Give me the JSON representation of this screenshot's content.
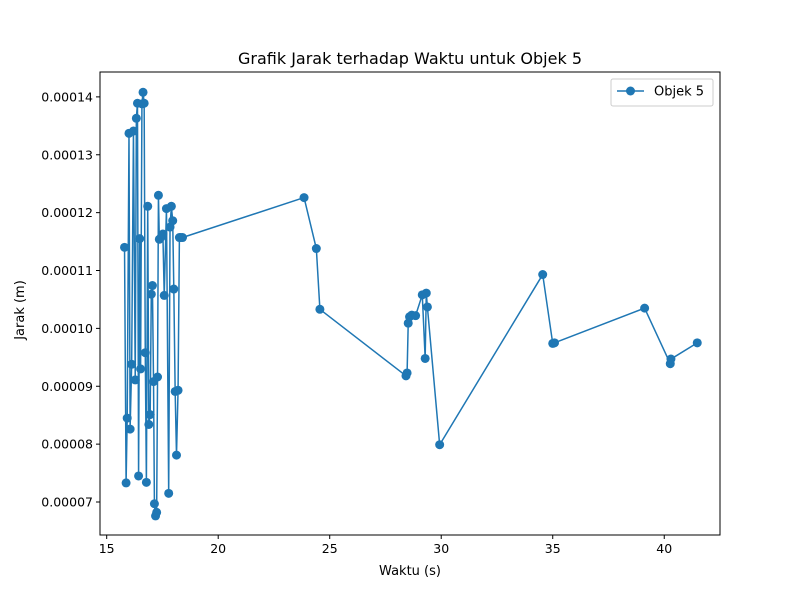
{
  "chart_data": {
    "type": "line",
    "title": "Grafik Jarak terhadap Waktu untuk Objek 5",
    "xlabel": "Waktu (s)",
    "ylabel": "Jarak (m)",
    "xlim": [
      14.7,
      42.5
    ],
    "ylim": [
      6.43e-05,
      0.0001443
    ],
    "xticks": [
      15,
      20,
      25,
      30,
      35,
      40
    ],
    "xtick_labels": [
      "15",
      "20",
      "25",
      "30",
      "35",
      "40"
    ],
    "yticks": [
      7e-05,
      8e-05,
      9e-05,
      0.0001,
      0.00011,
      0.00012,
      0.00013,
      0.00014
    ],
    "ytick_labels": [
      "0.00007",
      "0.00008",
      "0.00009",
      "0.00010",
      "0.00011",
      "0.00012",
      "0.00013",
      "0.00014"
    ],
    "grid": false,
    "legend_position": "top-right",
    "color": "#1f77b4",
    "series": [
      {
        "name": "Objek 5",
        "x": [
          15.8,
          15.87,
          15.92,
          16.0,
          16.05,
          16.12,
          16.2,
          16.28,
          16.33,
          16.38,
          16.43,
          16.48,
          16.52,
          16.58,
          16.63,
          16.68,
          16.73,
          16.78,
          16.84,
          16.89,
          16.95,
          17.0,
          17.05,
          17.1,
          17.14,
          17.19,
          17.24,
          17.28,
          17.32,
          17.36,
          17.45,
          17.52,
          17.58,
          17.68,
          17.78,
          17.84,
          17.9,
          17.96,
          18.01,
          18.07,
          18.13,
          18.2,
          18.26,
          18.32,
          18.4,
          23.85,
          24.4,
          24.56,
          28.42,
          28.47,
          28.52,
          28.58,
          28.68,
          28.85,
          29.15,
          29.28,
          29.33,
          29.38,
          29.93,
          34.55,
          35.0,
          35.08,
          39.12,
          40.27,
          40.3,
          41.48
        ],
        "y": [
          0.000114,
          7.33e-05,
          8.45e-05,
          0.0001337,
          8.26e-05,
          9.38e-05,
          0.0001341,
          9.11e-05,
          0.0001363,
          0.0001389,
          7.45e-05,
          0.0001155,
          9.3e-05,
          0.0001388,
          0.0001408,
          0.0001389,
          9.58e-05,
          7.34e-05,
          0.0001211,
          8.34e-05,
          8.51e-05,
          0.0001059,
          0.0001074,
          9.08e-05,
          6.97e-05,
          6.76e-05,
          6.82e-05,
          9.16e-05,
          0.000123,
          0.0001154,
          0.0001158,
          0.0001163,
          0.0001057,
          0.0001207,
          7.15e-05,
          0.0001175,
          0.0001211,
          0.0001186,
          0.0001068,
          8.91e-05,
          7.81e-05,
          8.93e-05,
          0.0001157,
          0.0001157,
          0.0001157,
          0.0001226,
          0.0001138,
          0.0001033,
          9.18e-05,
          9.23e-05,
          0.0001009,
          0.000102,
          0.0001023,
          0.0001022,
          0.0001058,
          9.48e-05,
          0.0001061,
          0.0001037,
          7.99e-05,
          0.0001093,
          9.74e-05,
          9.75e-05,
          0.0001035,
          9.39e-05,
          9.47e-05,
          9.75e-05
        ]
      }
    ]
  }
}
